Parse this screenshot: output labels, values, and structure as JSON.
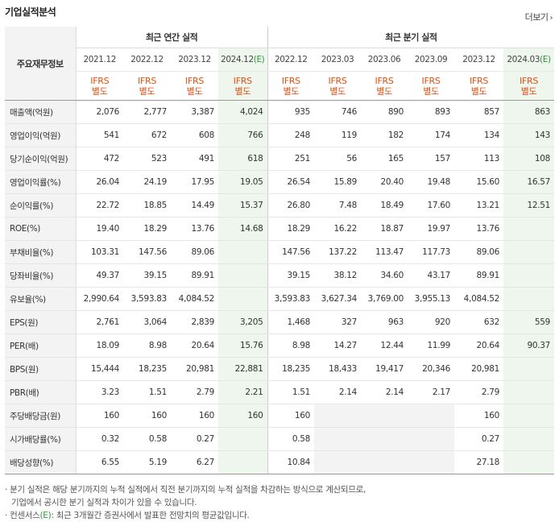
{
  "header": {
    "title": "기업실적분석",
    "more_label": "더보기"
  },
  "table": {
    "row_header_label": "주요재무정보",
    "annual_group": "최근 연간 실적",
    "quarter_group": "최근 분기 실적",
    "annual_periods": [
      "2021.12",
      "2022.12",
      "2023.12",
      "2024.12"
    ],
    "annual_estimate_suffix": "(E)",
    "quarter_periods": [
      "2022.12",
      "2023.03",
      "2023.06",
      "2023.09",
      "2023.12",
      "2024.03"
    ],
    "quarter_estimate_suffix": "(E)",
    "ifrs_line1": "IFRS",
    "ifrs_line2": "별도",
    "rows": [
      {
        "label": "매출액(억원)",
        "values": [
          "2,076",
          "2,777",
          "3,387",
          "4,024",
          "935",
          "746",
          "890",
          "893",
          "857",
          "863"
        ]
      },
      {
        "label": "영업이익(억원)",
        "values": [
          "541",
          "672",
          "608",
          "766",
          "248",
          "119",
          "182",
          "174",
          "134",
          "143"
        ]
      },
      {
        "label": "당기순이익(억원)",
        "values": [
          "472",
          "523",
          "491",
          "618",
          "251",
          "56",
          "165",
          "157",
          "113",
          "108"
        ]
      },
      {
        "label": "영업이익률(%)",
        "values": [
          "26.04",
          "24.19",
          "17.95",
          "19.05",
          "26.54",
          "15.89",
          "20.40",
          "19.48",
          "15.60",
          "16.57"
        ]
      },
      {
        "label": "순이익률(%)",
        "values": [
          "22.72",
          "18.85",
          "14.49",
          "15.37",
          "26.80",
          "7.48",
          "18.49",
          "17.60",
          "13.21",
          "12.51"
        ]
      },
      {
        "label": "ROE(%)",
        "values": [
          "19.40",
          "18.29",
          "13.76",
          "14.68",
          "18.29",
          "16.22",
          "18.87",
          "19.97",
          "13.76",
          ""
        ]
      },
      {
        "label": "부채비율(%)",
        "values": [
          "103.31",
          "147.56",
          "89.06",
          "",
          "147.56",
          "137.22",
          "113.47",
          "117.73",
          "89.06",
          ""
        ]
      },
      {
        "label": "당좌비율(%)",
        "values": [
          "49.37",
          "39.15",
          "89.91",
          "",
          "39.15",
          "38.12",
          "34.60",
          "43.17",
          "89.91",
          ""
        ]
      },
      {
        "label": "유보율(%)",
        "values": [
          "2,990.64",
          "3,593.83",
          "4,084.52",
          "",
          "3,593.83",
          "3,627.34",
          "3,769.00",
          "3,955.13",
          "4,084.52",
          ""
        ]
      },
      {
        "label": "EPS(원)",
        "values": [
          "2,761",
          "3,064",
          "2,839",
          "3,205",
          "1,468",
          "327",
          "963",
          "920",
          "632",
          "559"
        ]
      },
      {
        "label": "PER(배)",
        "values": [
          "18.09",
          "8.98",
          "20.64",
          "15.76",
          "8.98",
          "14.27",
          "12.44",
          "11.99",
          "20.64",
          "90.37"
        ]
      },
      {
        "label": "BPS(원)",
        "values": [
          "15,444",
          "18,235",
          "20,981",
          "22,881",
          "18,235",
          "18,433",
          "19,417",
          "20,346",
          "20,981",
          ""
        ]
      },
      {
        "label": "PBR(배)",
        "values": [
          "3.23",
          "1.51",
          "2.79",
          "2.21",
          "1.51",
          "2.14",
          "2.14",
          "2.17",
          "2.79",
          ""
        ]
      },
      {
        "label": "주당배당금(원)",
        "values": [
          "160",
          "160",
          "160",
          "160",
          "160",
          "",
          "",
          "",
          "160",
          ""
        ]
      },
      {
        "label": "시가배당률(%)",
        "values": [
          "0.32",
          "0.58",
          "0.27",
          "",
          "0.58",
          "",
          "",
          "",
          "0.27",
          ""
        ]
      },
      {
        "label": "배당성향(%)",
        "values": [
          "6.55",
          "5.19",
          "6.27",
          "",
          "10.84",
          "",
          "",
          "",
          "27.18",
          ""
        ]
      }
    ]
  },
  "notes": {
    "line1": "· 분기 실적은 해당 분기까지의 누적 실적에서 직전 분기까지의 누적 실적을 차감하는 방식으로 계산되므로,",
    "line2": "기업에서 공시한 분기 실적과 차이가 있을 수 있습니다.",
    "line3_prefix": "· 컨센서스",
    "line3_e": "(E)",
    "line3_suffix": ": 최근 3개월간 증권사에서 발표한 전망치의 평균값입니다."
  },
  "colors": {
    "ifrs": "#e05010",
    "estimate": "#2a9a3a",
    "estimate_bg": "#eef6ee",
    "label_bg": "#f3f3f3"
  }
}
